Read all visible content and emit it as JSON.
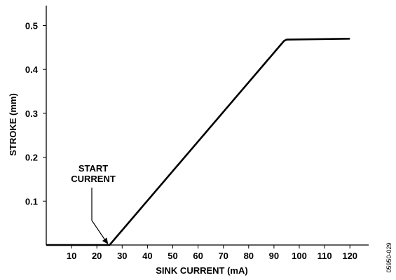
{
  "chart_data": {
    "type": "line",
    "xlabel": "SINK CURRENT (mA)",
    "ylabel": "STROKE (mm)",
    "xlim": [
      0,
      125
    ],
    "ylim": [
      0,
      0.53
    ],
    "x_ticks": [
      10,
      20,
      30,
      40,
      50,
      60,
      70,
      80,
      90,
      100,
      110,
      120
    ],
    "y_ticks": [
      0.1,
      0.2,
      0.3,
      0.4,
      0.5
    ],
    "grid": false,
    "series": [
      {
        "x": [
          0,
          24.5,
          25,
          94,
          95,
          120
        ],
        "y": [
          0,
          0,
          0,
          0.465,
          0.468,
          0.47
        ]
      }
    ],
    "annotation": {
      "lines": [
        "START",
        "CURRENT"
      ],
      "x": 24.5,
      "y": 0
    }
  },
  "figure_id": "05950-029"
}
